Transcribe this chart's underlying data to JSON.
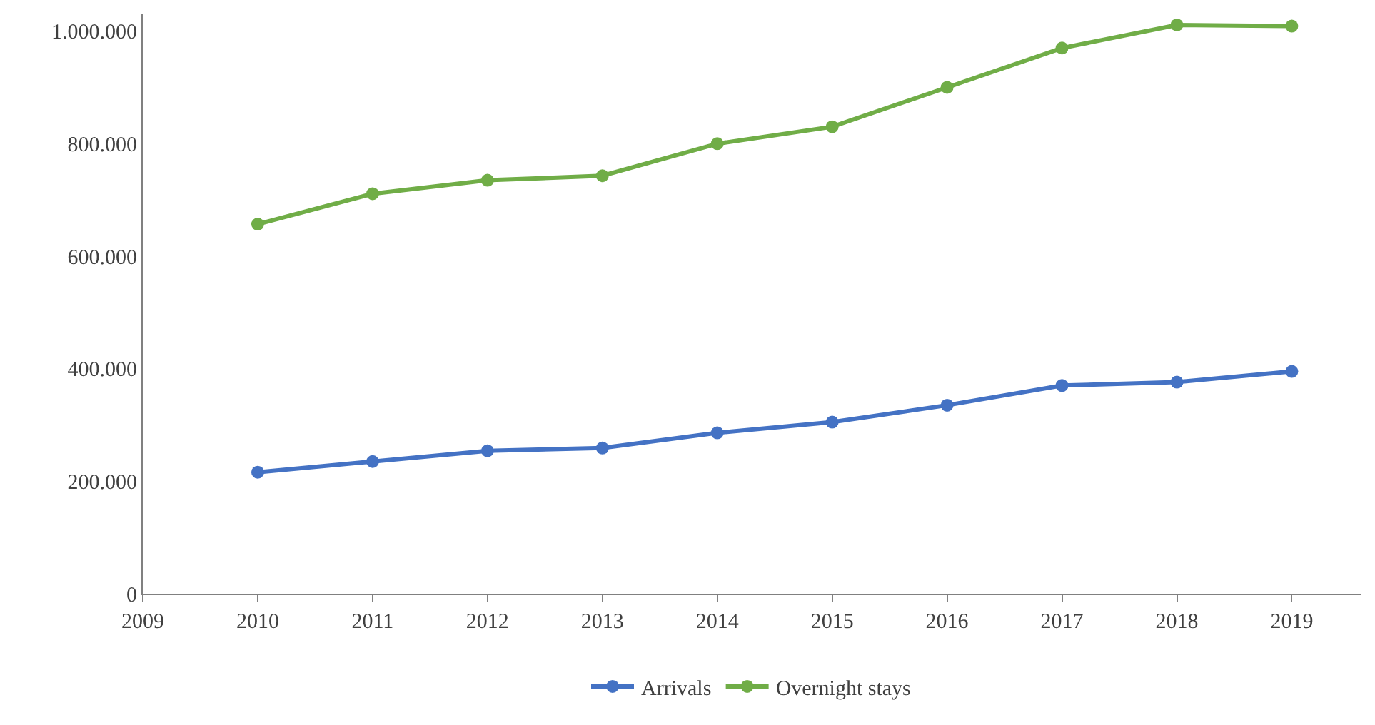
{
  "chart_data": {
    "type": "line",
    "x": [
      2010,
      2011,
      2012,
      2013,
      2014,
      2015,
      2016,
      2017,
      2018,
      2019
    ],
    "series": [
      {
        "name": "Arrivals",
        "color": "#4472c4",
        "values": [
          216000,
          235000,
          254000,
          259000,
          286000,
          305000,
          335000,
          370000,
          376000,
          395000
        ]
      },
      {
        "name": "Overnight stays",
        "color": "#70ad47",
        "values": [
          657000,
          711000,
          735000,
          743000,
          800000,
          830000,
          900000,
          970000,
          1011000,
          1009000
        ]
      }
    ],
    "xlim": [
      2009,
      2019.6
    ],
    "xticks": [
      2009,
      2010,
      2011,
      2012,
      2013,
      2014,
      2015,
      2016,
      2017,
      2018,
      2019
    ],
    "ylim": [
      0,
      1030000
    ],
    "yticks": [
      {
        "value": 0,
        "label": "0"
      },
      {
        "value": 200000,
        "label": "200.000"
      },
      {
        "value": 400000,
        "label": "400.000"
      },
      {
        "value": 600000,
        "label": "600.000"
      },
      {
        "value": 800000,
        "label": "800.000"
      },
      {
        "value": 1000000,
        "label": "1.000.000"
      }
    ],
    "legend": "bottom",
    "marker": "circle",
    "line_style": "solid"
  }
}
